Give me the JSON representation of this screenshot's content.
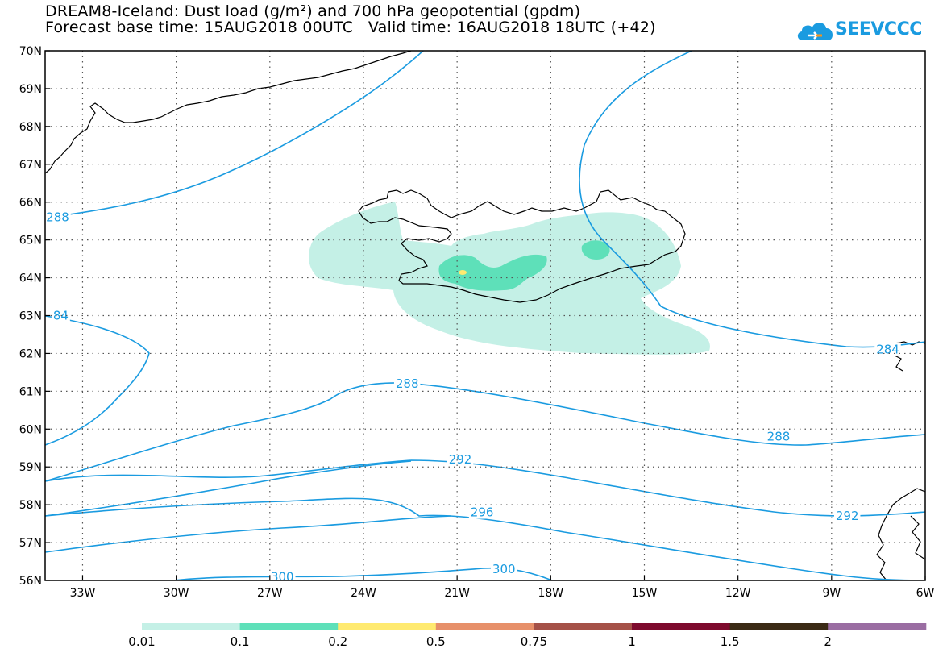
{
  "header": {
    "title_line1": "DREAM8-Iceland: Dust load (g/m²) and 700 hPa geopotential (gpdm)",
    "base_time": "Forecast base time: 15AUG2018 00UTC",
    "valid_time": "Valid time: 16AUG2018 18UTC (+42)"
  },
  "logo": {
    "text": "SEEVCCC",
    "icon": "cloud-icon",
    "color": "#1a9be0"
  },
  "map_data": {
    "region": "North Atlantic / Iceland",
    "lat_range": [
      56,
      70
    ],
    "lon_range": [
      -34.2,
      -6
    ],
    "lat_ticks": [
      "56N",
      "57N",
      "58N",
      "59N",
      "60N",
      "61N",
      "62N",
      "63N",
      "64N",
      "65N",
      "66N",
      "67N",
      "68N",
      "69N",
      "70N"
    ],
    "lon_ticks": [
      "33W",
      "30W",
      "27W",
      "24W",
      "21W",
      "18W",
      "15W",
      "12W",
      "9W",
      "6W"
    ],
    "contour_color": "#1a9be0",
    "contour_labels": [
      {
        "text": "288",
        "lon": -33.8,
        "lat": 65.6
      },
      {
        "text": "84",
        "lon": -33.7,
        "lat": 63.0
      },
      {
        "text": "284",
        "lon": -7.2,
        "lat": 62.1
      },
      {
        "text": "288",
        "lon": -22.6,
        "lat": 61.2
      },
      {
        "text": "288",
        "lon": -10.7,
        "lat": 59.8
      },
      {
        "text": "292",
        "lon": -20.9,
        "lat": 59.2
      },
      {
        "text": "292",
        "lon": -8.5,
        "lat": 57.7
      },
      {
        "text": "296",
        "lon": -20.2,
        "lat": 57.8
      },
      {
        "text": "300",
        "lon": -26.6,
        "lat": 56.1
      },
      {
        "text": "300",
        "lon": -19.5,
        "lat": 56.3
      }
    ],
    "dust_colors": {
      "light": "#c4f0e6",
      "medium": "#5ee0b9",
      "high": "#ffea70"
    }
  },
  "legend": {
    "colors": [
      "#c4f0e6",
      "#5ee0b9",
      "#ffea70",
      "#e7906a",
      "#a55148",
      "#7e0a2d",
      "#3b2a15",
      "#9a6da2"
    ],
    "labels": [
      "0.01",
      "0.1",
      "0.2",
      "0.5",
      "0.75",
      "1",
      "1.5",
      "2"
    ]
  }
}
